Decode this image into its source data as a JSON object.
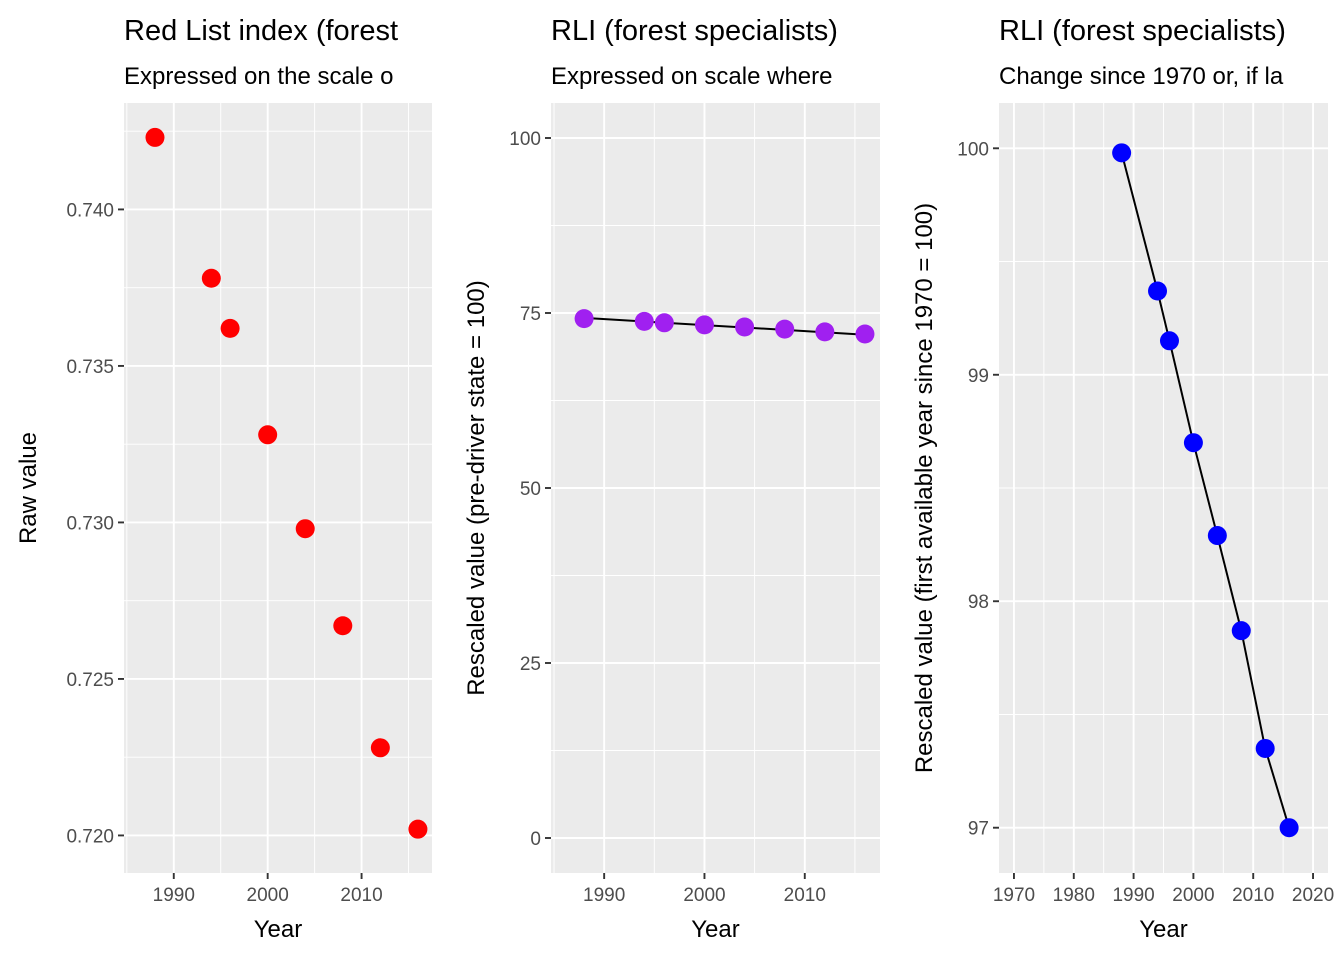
{
  "colors": {
    "panel_background": "#ebebeb",
    "grid": "#ffffff",
    "panel1_points": "#ff0000",
    "panel2_points": "#a020f0",
    "panel3_points": "#0000ff",
    "trend_line": "#000000"
  },
  "chart_data": [
    {
      "type": "scatter",
      "title": "Red List index (forest",
      "subtitle": "Expressed on the scale o",
      "xlabel": "Year",
      "ylabel": "Raw value",
      "x": [
        1988,
        1994,
        1996,
        2000,
        2004,
        2008,
        2012,
        2016
      ],
      "y": [
        0.7423,
        0.7378,
        0.7362,
        0.7328,
        0.7298,
        0.7267,
        0.7228,
        0.7202
      ],
      "xlim": [
        1984.7,
        2017.5
      ],
      "ylim": [
        0.7188,
        0.7434
      ],
      "x_ticks": [
        1990,
        2000,
        2010
      ],
      "x_tick_labels": [
        "1990",
        "2000",
        "2010"
      ],
      "y_ticks": [
        0.72,
        0.725,
        0.73,
        0.735,
        0.74
      ],
      "y_tick_labels": [
        "0.720",
        "0.725",
        "0.730",
        "0.735",
        "0.740"
      ],
      "trend_line": false,
      "grid": true
    },
    {
      "type": "scatter",
      "title": "RLI (forest specialists)",
      "subtitle": "Expressed on scale where",
      "xlabel": "Year",
      "ylabel": "Rescaled value (pre-driver state = 100)",
      "x": [
        1988,
        1994,
        1996,
        2000,
        2004,
        2008,
        2012,
        2016
      ],
      "y": [
        74.2,
        73.8,
        73.6,
        73.3,
        73.0,
        72.7,
        72.3,
        72.0
      ],
      "trend": [
        [
          1988,
          74.3
        ],
        [
          2016,
          71.9
        ]
      ],
      "xlim": [
        1984.7,
        2017.5
      ],
      "ylim": [
        -5,
        105
      ],
      "x_ticks": [
        1990,
        2000,
        2010
      ],
      "x_tick_labels": [
        "1990",
        "2000",
        "2010"
      ],
      "y_ticks": [
        0,
        25,
        50,
        75,
        100
      ],
      "y_tick_labels": [
        "0",
        "25",
        "50",
        "75",
        "100"
      ],
      "trend_line": true,
      "grid": true
    },
    {
      "type": "scatter",
      "title": "RLI (forest specialists)",
      "subtitle": "Change since 1970 or, if la",
      "xlabel": "Year",
      "ylabel": "Rescaled value (first available year since 1970 = 100)",
      "x": [
        1988,
        1994,
        1996,
        2000,
        2004,
        2008,
        2012,
        2016
      ],
      "y": [
        99.98,
        99.37,
        99.15,
        98.7,
        98.29,
        97.87,
        97.35,
        97.0
      ],
      "trend": [
        [
          1988,
          99.98
        ],
        [
          1994,
          99.37
        ],
        [
          1996,
          99.15
        ],
        [
          2000,
          98.7
        ],
        [
          2004,
          98.29
        ],
        [
          2008,
          97.87
        ],
        [
          2012,
          97.35
        ],
        [
          2016,
          97.0
        ]
      ],
      "xlim": [
        1967.5,
        2022.5
      ],
      "ylim": [
        96.8,
        100.2
      ],
      "x_ticks": [
        1970,
        1980,
        1990,
        2000,
        2010,
        2020
      ],
      "x_tick_labels": [
        "1970",
        "1980",
        "1990",
        "2000",
        "2010",
        "2020"
      ],
      "y_ticks": [
        97,
        98,
        99,
        100
      ],
      "y_tick_labels": [
        "97",
        "98",
        "99",
        "100"
      ],
      "trend_line": true,
      "grid": true
    }
  ]
}
